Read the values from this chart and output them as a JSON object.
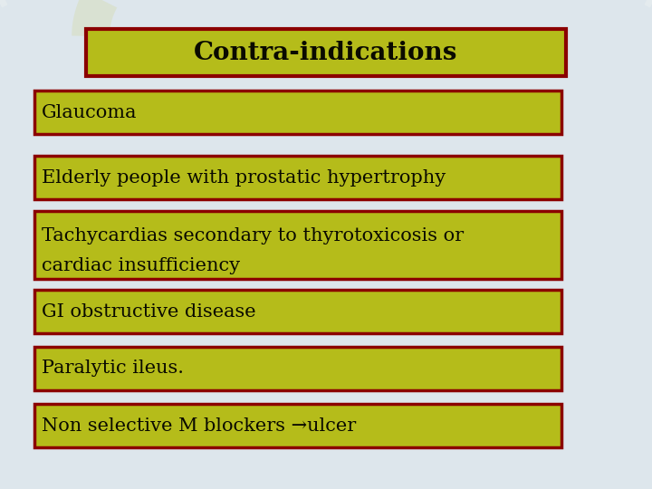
{
  "title": "Contra-indications",
  "title_bg": "#b5bc1a",
  "title_border": "#8B0000",
  "title_text_color": "#0a0a00",
  "box_bg": "#b5bc1a",
  "box_border": "#8B0000",
  "box_text_color": "#0a0a00",
  "background_color": "#dde6ec",
  "items": [
    "Glaucoma",
    "Elderly people with prostatic hypertrophy",
    "Tachycardias secondary to thyrotoxicosis or\ncardiac insufficiency",
    "GI obstructive disease",
    "Paralytic ileus.",
    "Non selective M blockers →ulcer"
  ],
  "fig_width": 7.2,
  "fig_height": 5.4,
  "dpi": 100
}
